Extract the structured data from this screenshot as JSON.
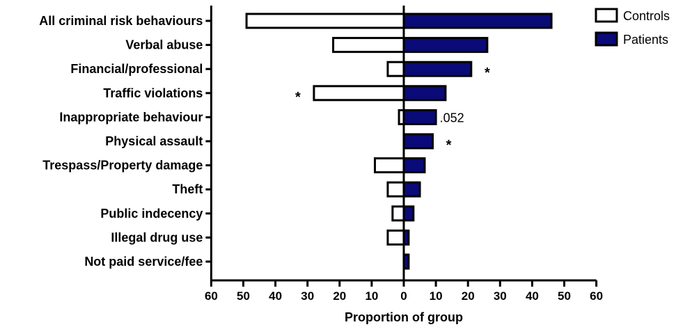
{
  "chart_data": {
    "type": "bar",
    "orientation": "horizontal-diverging",
    "xlabel": "Proportion of group",
    "xlim": [
      -60,
      60
    ],
    "xticks": [
      60,
      50,
      40,
      30,
      20,
      10,
      0,
      10,
      20,
      30,
      40,
      50,
      60
    ],
    "xtick_values": [
      -60,
      -50,
      -40,
      -30,
      -20,
      -10,
      0,
      10,
      20,
      30,
      40,
      50,
      60
    ],
    "legend_position": "top-right",
    "categories": [
      "All criminal risk behaviours",
      "Verbal abuse",
      "Financial/professional",
      "Traffic violations",
      "Inappropriate behaviour",
      "Physical assault",
      "Trespass/Property damage",
      "Theft",
      "Public indecency",
      "Illegal drug use",
      "Not paid service/fee"
    ],
    "series": [
      {
        "name": "Controls",
        "side": "left",
        "fill": "#ffffff",
        "stroke": "#000000",
        "values": [
          49,
          22,
          5,
          28,
          1.5,
          0,
          9,
          5,
          3.5,
          5,
          0
        ]
      },
      {
        "name": "Patients",
        "side": "right",
        "fill": "#0a0a78",
        "stroke": "#000000",
        "values": [
          46,
          26,
          21,
          13,
          10,
          9,
          6.5,
          5,
          3,
          1.5,
          1.5
        ]
      }
    ],
    "annotations": [
      {
        "category_index": 2,
        "text": "*",
        "side": "right",
        "at_value": 26
      },
      {
        "category_index": 3,
        "text": "*",
        "side": "left",
        "at_value": -33
      },
      {
        "category_index": 4,
        "text": ".052",
        "side": "right",
        "at_value": 15
      },
      {
        "category_index": 5,
        "text": "*",
        "side": "right",
        "at_value": 14
      }
    ]
  }
}
